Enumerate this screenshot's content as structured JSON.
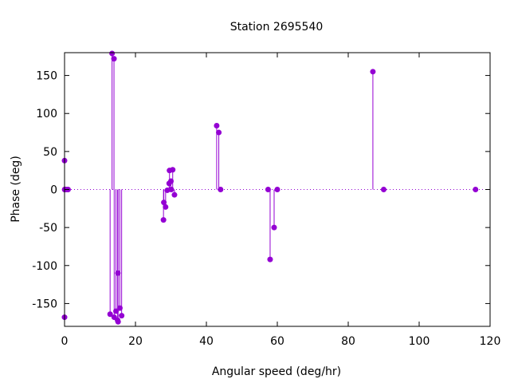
{
  "chart_data": {
    "type": "scatter",
    "style": "impulses-with-points",
    "title": "Station 2695540",
    "xlabel": "Angular speed (deg/hr)",
    "ylabel": "Phase (deg)",
    "xlim": [
      0,
      120
    ],
    "ylim": [
      -180,
      180
    ],
    "xticks": [
      0,
      20,
      40,
      60,
      80,
      100,
      120
    ],
    "yticks": [
      -150,
      -100,
      -50,
      0,
      50,
      100,
      150
    ],
    "zero_line": "dotted",
    "grid": false,
    "color": "#9400d3",
    "points": [
      {
        "x": 0.0,
        "y": 38
      },
      {
        "x": 0.0,
        "y": -168
      },
      {
        "x": 0.04,
        "y": 0
      },
      {
        "x": 0.08,
        "y": 0
      },
      {
        "x": 0.5,
        "y": 0
      },
      {
        "x": 1.0,
        "y": 0
      },
      {
        "x": 12.85,
        "y": -164
      },
      {
        "x": 13.4,
        "y": 179
      },
      {
        "x": 13.94,
        "y": 172
      },
      {
        "x": 14.0,
        "y": -168
      },
      {
        "x": 14.5,
        "y": -160
      },
      {
        "x": 14.96,
        "y": -172
      },
      {
        "x": 15.04,
        "y": -110
      },
      {
        "x": 15.1,
        "y": -174
      },
      {
        "x": 15.6,
        "y": -156
      },
      {
        "x": 16.1,
        "y": -166
      },
      {
        "x": 27.9,
        "y": -40
      },
      {
        "x": 28.0,
        "y": -17
      },
      {
        "x": 28.5,
        "y": -23
      },
      {
        "x": 28.98,
        "y": -1
      },
      {
        "x": 29.5,
        "y": 8
      },
      {
        "x": 29.6,
        "y": 25
      },
      {
        "x": 30.0,
        "y": 11
      },
      {
        "x": 30.1,
        "y": 0
      },
      {
        "x": 30.5,
        "y": 26
      },
      {
        "x": 31.0,
        "y": -7
      },
      {
        "x": 42.9,
        "y": 84
      },
      {
        "x": 43.5,
        "y": 75
      },
      {
        "x": 44.0,
        "y": 0
      },
      {
        "x": 57.4,
        "y": 0
      },
      {
        "x": 57.97,
        "y": -92
      },
      {
        "x": 59.1,
        "y": -50
      },
      {
        "x": 60.0,
        "y": 0
      },
      {
        "x": 86.95,
        "y": 155
      },
      {
        "x": 90.0,
        "y": 0
      },
      {
        "x": 115.9,
        "y": 0
      }
    ]
  }
}
